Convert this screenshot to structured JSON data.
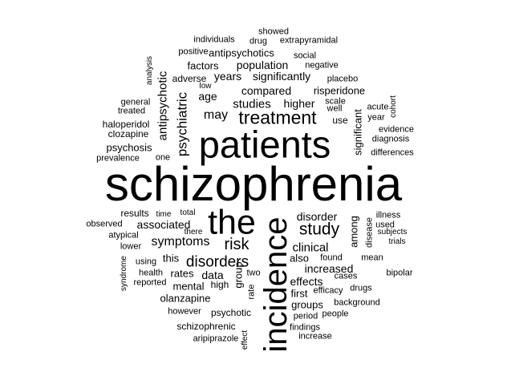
{
  "words": {
    "schizophrenia": "schizophrenia",
    "patients": "patients",
    "the": "the",
    "incidence": "incidence",
    "treatment": "treatment",
    "study": "study",
    "risk": "risk",
    "disorders": "disorders",
    "symptoms": "symptoms",
    "psychiatric": "psychiatric",
    "antipsychotic": "antipsychotic",
    "studies": "studies",
    "may": "may",
    "associated": "associated",
    "disorder": "disorder",
    "clinical": "clinical",
    "increased": "increased",
    "effects": "effects",
    "group": "group",
    "data": "data",
    "rates": "rates",
    "significant": "significant",
    "among": "among",
    "compared": "compared",
    "higher": "higher",
    "population": "population",
    "significantly": "significantly",
    "years": "years",
    "age": "age",
    "risperidone": "risperidone",
    "olanzapine": "olanzapine",
    "mental": "mental",
    "psychosis": "psychosis",
    "clozapine": "clozapine",
    "haloperidol": "haloperidol",
    "factors": "factors",
    "antipsychotics": "antipsychotics",
    "adverse": "adverse",
    "results": "results",
    "this": "this",
    "first": "first",
    "groups": "groups",
    "also": "also",
    "schizophrenic": "schizophrenic",
    "psychotic": "psychotic",
    "high": "high",
    "rate": "rate",
    "two": "two",
    "use": "use",
    "found": "found",
    "showed": "showed",
    "individuals": "individuals",
    "drug": "drug",
    "extrapyramidal": "extrapyramidal",
    "positive": "positive",
    "social": "social",
    "negative": "negative",
    "analysis": "analysis",
    "placebo": "placebo",
    "low": "low",
    "scale": "scale",
    "well": "well",
    "acute": "acute",
    "cohort": "cohort",
    "general": "general",
    "treated": "treated",
    "year": "year",
    "evidence": "evidence",
    "diagnosis": "diagnosis",
    "differences": "differences",
    "prevalence": "prevalence",
    "one": "one",
    "total": "total",
    "time": "time",
    "observed": "observed",
    "atypical": "atypical",
    "there": "there",
    "lower": "lower",
    "illness": "illness",
    "used": "used",
    "subjects": "subjects",
    "disease": "disease",
    "trials": "trials",
    "using": "using",
    "health": "health",
    "reported": "reported",
    "syndrome": "syndrome",
    "mean": "mean",
    "bipolar": "bipolar",
    "cases": "cases",
    "efficacy": "efficacy",
    "drugs": "drugs",
    "background": "background",
    "however": "however",
    "period": "period",
    "people": "people",
    "findings": "findings",
    "aripiprazole": "aripiprazole",
    "effect": "effect",
    "increase": "increase"
  }
}
